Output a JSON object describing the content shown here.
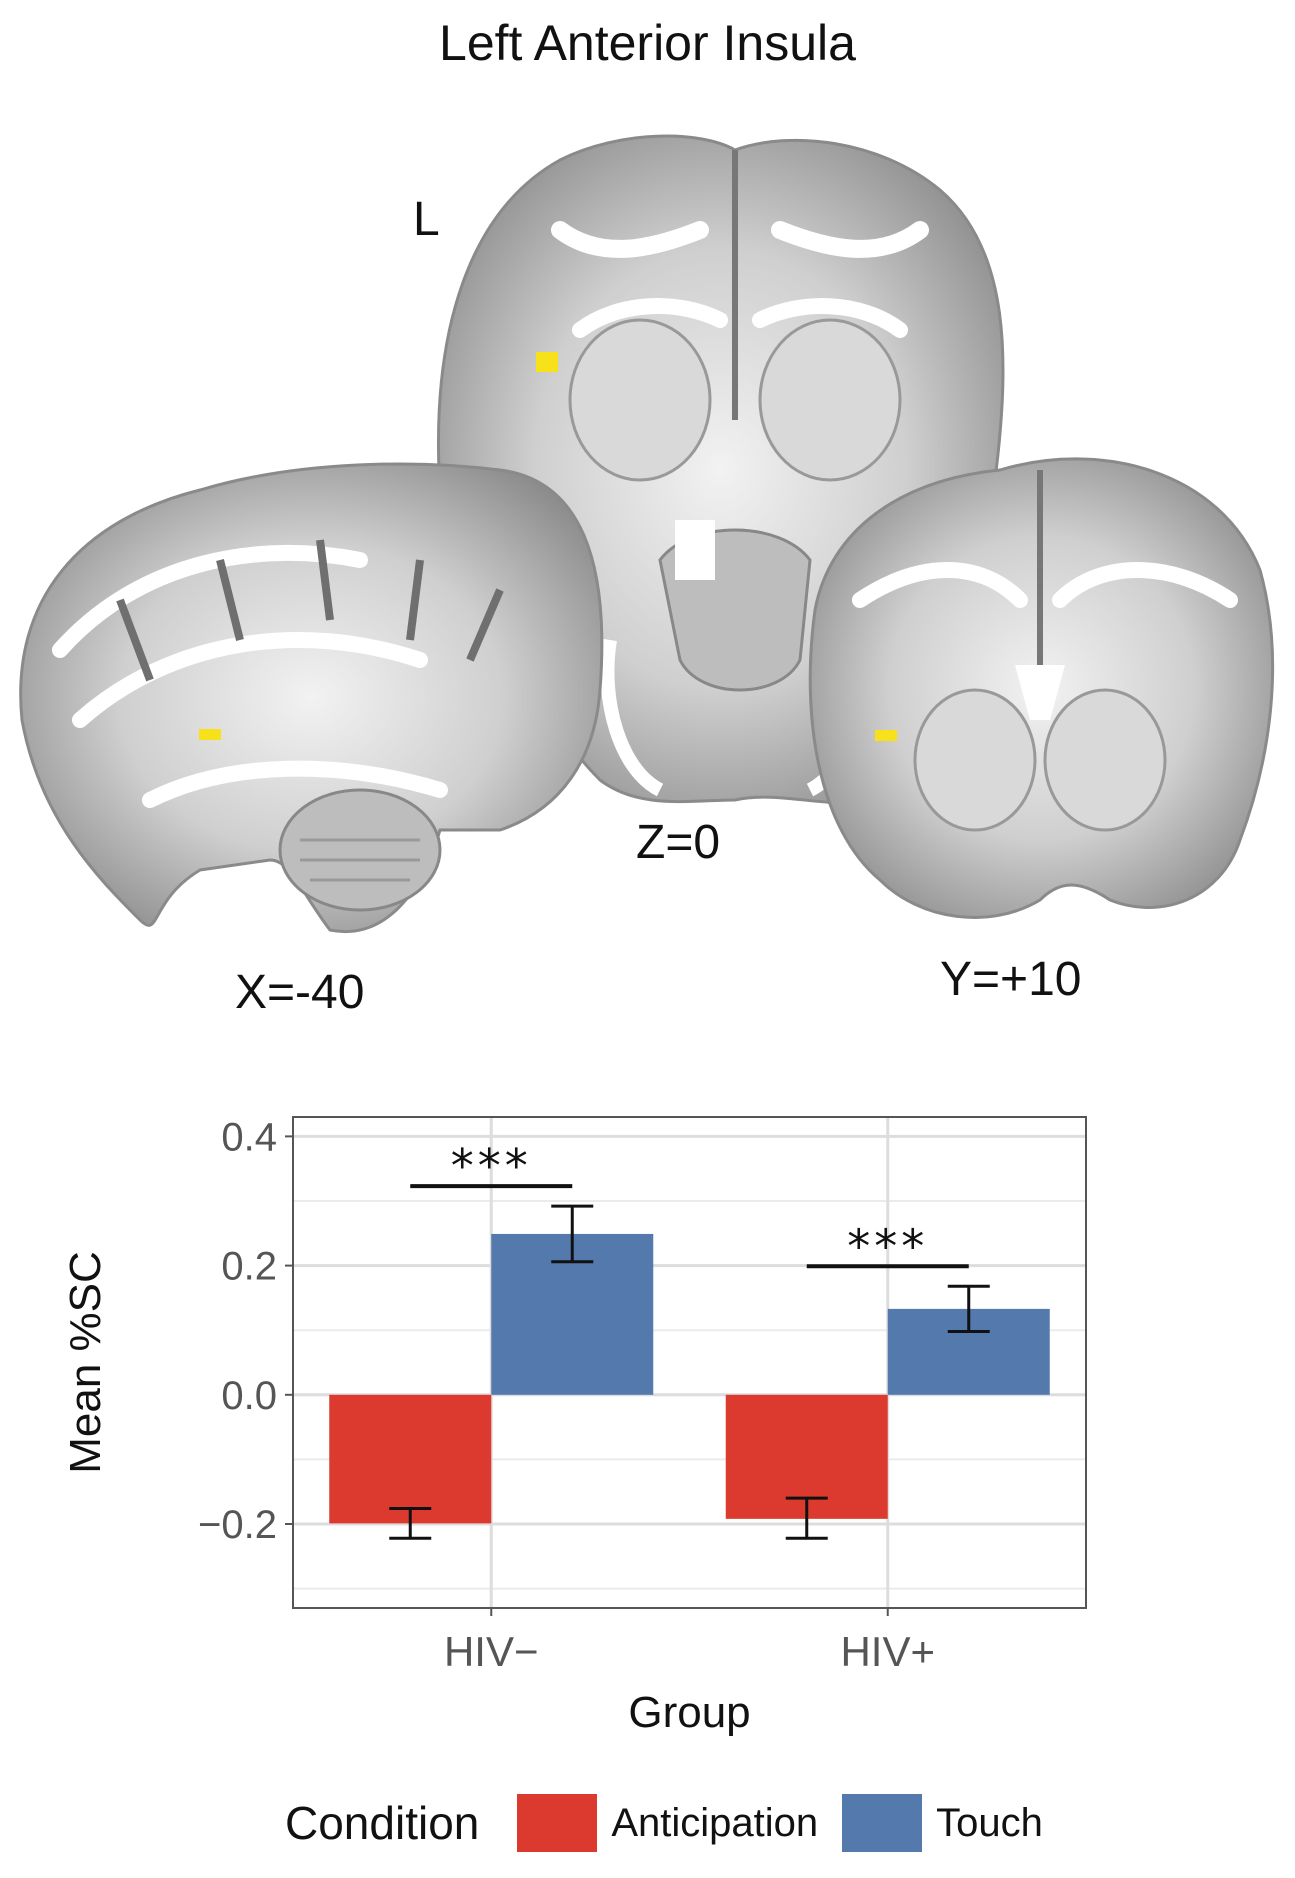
{
  "figure": {
    "title": "Left Anterior Insula",
    "orientation_label": "L",
    "sagittal_label": "X=-40",
    "axial_label": "Z=0",
    "coronal_label": "Y=+10",
    "roi_color": "#f7e11a"
  },
  "chart_data": {
    "type": "bar",
    "categories": [
      "HIV−",
      "HIV+"
    ],
    "series": [
      {
        "name": "Anticipation",
        "color": "#dc3a2f",
        "values": [
          -0.199,
          -0.192
        ],
        "error_low": [
          -0.222,
          -0.222
        ],
        "error_high": [
          -0.176,
          -0.16
        ]
      },
      {
        "name": "Touch",
        "color": "#5479ad",
        "values": [
          0.249,
          0.133
        ],
        "error_low": [
          0.206,
          0.098
        ],
        "error_high": [
          0.292,
          0.168
        ]
      }
    ],
    "significance": [
      {
        "category": "HIV−",
        "label": "***"
      },
      {
        "category": "HIV+",
        "label": "***"
      }
    ],
    "xlabel": "Group",
    "ylabel": "Mean %SC",
    "yticks": [
      0.4,
      0.2,
      0.0,
      -0.2
    ],
    "ytick_labels": [
      "0.4",
      "0.2",
      "0.0",
      "−0.2"
    ],
    "ylim": [
      -0.33,
      0.43
    ],
    "grid": true,
    "legend": {
      "title": "Condition",
      "position": "bottom"
    }
  }
}
